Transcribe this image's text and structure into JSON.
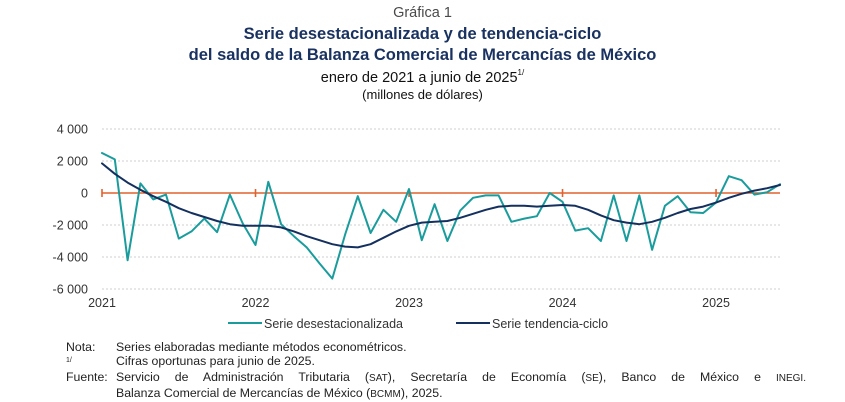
{
  "header": {
    "figure_number": "Gráfica 1",
    "title_line1": "Serie desestacionalizada y de tendencia-ciclo",
    "title_line2": "del saldo de la Balanza Comercial de Mercancías de México",
    "subtitle": "enero de 2021 a junio de 2025",
    "subtitle_footnote": "1/",
    "units": "(millones de dólares)"
  },
  "chart_data": {
    "type": "line",
    "title": "Serie desestacionalizada y de tendencia-ciclo del saldo de la Balanza Comercial de Mercancías de México",
    "subtitle": "enero de 2021 a junio de 2025",
    "ylabel": "millones de dólares",
    "xlabel": "",
    "ylim": [
      -6000,
      4000
    ],
    "yticks": [
      4000,
      2000,
      0,
      -2000,
      -4000,
      -6000
    ],
    "ytick_labels": [
      "4 000",
      "2 000",
      "0",
      "-2 000",
      "-4 000",
      "-6 000"
    ],
    "xtick_labels": [
      "2021",
      "2022",
      "2023",
      "2024",
      "2025"
    ],
    "x_start": "2021-01",
    "x_end": "2025-06",
    "grid": true,
    "legend_position": "bottom",
    "reference_line": {
      "value": 0,
      "color": "#e0622e"
    },
    "x": [
      "2021-01",
      "2021-02",
      "2021-03",
      "2021-04",
      "2021-05",
      "2021-06",
      "2021-07",
      "2021-08",
      "2021-09",
      "2021-10",
      "2021-11",
      "2021-12",
      "2022-01",
      "2022-02",
      "2022-03",
      "2022-04",
      "2022-05",
      "2022-06",
      "2022-07",
      "2022-08",
      "2022-09",
      "2022-10",
      "2022-11",
      "2022-12",
      "2023-01",
      "2023-02",
      "2023-03",
      "2023-04",
      "2023-05",
      "2023-06",
      "2023-07",
      "2023-08",
      "2023-09",
      "2023-10",
      "2023-11",
      "2023-12",
      "2024-01",
      "2024-02",
      "2024-03",
      "2024-04",
      "2024-05",
      "2024-06",
      "2024-07",
      "2024-08",
      "2024-09",
      "2024-10",
      "2024-11",
      "2024-12",
      "2025-01",
      "2025-02",
      "2025-03",
      "2025-04",
      "2025-05",
      "2025-06"
    ],
    "series": [
      {
        "name": "Serie desestacionalizada",
        "color": "#1a9c9c",
        "values": [
          2500,
          2100,
          -4200,
          600,
          -400,
          -100,
          -2850,
          -2400,
          -1600,
          -2450,
          -100,
          -1900,
          -3250,
          700,
          -1950,
          -2700,
          -3400,
          -4400,
          -5350,
          -2600,
          -200,
          -2500,
          -1050,
          -1800,
          250,
          -2950,
          -700,
          -3000,
          -1100,
          -300,
          -150,
          -150,
          -1800,
          -1600,
          -1450,
          0,
          -550,
          -2350,
          -2200,
          -3000,
          -150,
          -3000,
          -150,
          -3550,
          -800,
          -200,
          -1200,
          -1250,
          -600,
          1050,
          800,
          -100,
          50,
          550
        ]
      },
      {
        "name": "Serie tendencia-ciclo",
        "color": "#14305e",
        "values": [
          1850,
          1200,
          650,
          200,
          -200,
          -550,
          -950,
          -1250,
          -1500,
          -1750,
          -1950,
          -2050,
          -2050,
          -2050,
          -2150,
          -2400,
          -2700,
          -2950,
          -3200,
          -3350,
          -3400,
          -3200,
          -2800,
          -2400,
          -2050,
          -1850,
          -1800,
          -1750,
          -1550,
          -1300,
          -1050,
          -850,
          -800,
          -800,
          -850,
          -800,
          -750,
          -800,
          -1050,
          -1400,
          -1700,
          -1850,
          -1950,
          -1800,
          -1550,
          -1250,
          -1000,
          -850,
          -600,
          -300,
          -50,
          150,
          300,
          500
        ]
      }
    ]
  },
  "legend": {
    "items": [
      {
        "label": "Serie desestacionalizada",
        "color": "#1a9c9c"
      },
      {
        "label": "Serie tendencia-ciclo",
        "color": "#14305e"
      }
    ]
  },
  "notes": {
    "nota_label": "Nota:",
    "nota_text": "Series elaboradas mediante métodos econométricos.",
    "footnote_label": "1/",
    "footnote_text": "Cifras oportunas para junio de 2025.",
    "fuente_label": "Fuente:",
    "fuente_line1_a": "Servicio de Administración Tributaria (",
    "fuente_sat": "SAT",
    "fuente_line1_b": "), Secretaría de Economía (",
    "fuente_se": "SE",
    "fuente_line1_c": "), Banco de México e ",
    "fuente_inegi": "INEGI.",
    "fuente_line2_a": "Balanza Comercial de Mercancías de México (",
    "fuente_bcmm": "BCMM",
    "fuente_line2_b": "), 2025."
  }
}
